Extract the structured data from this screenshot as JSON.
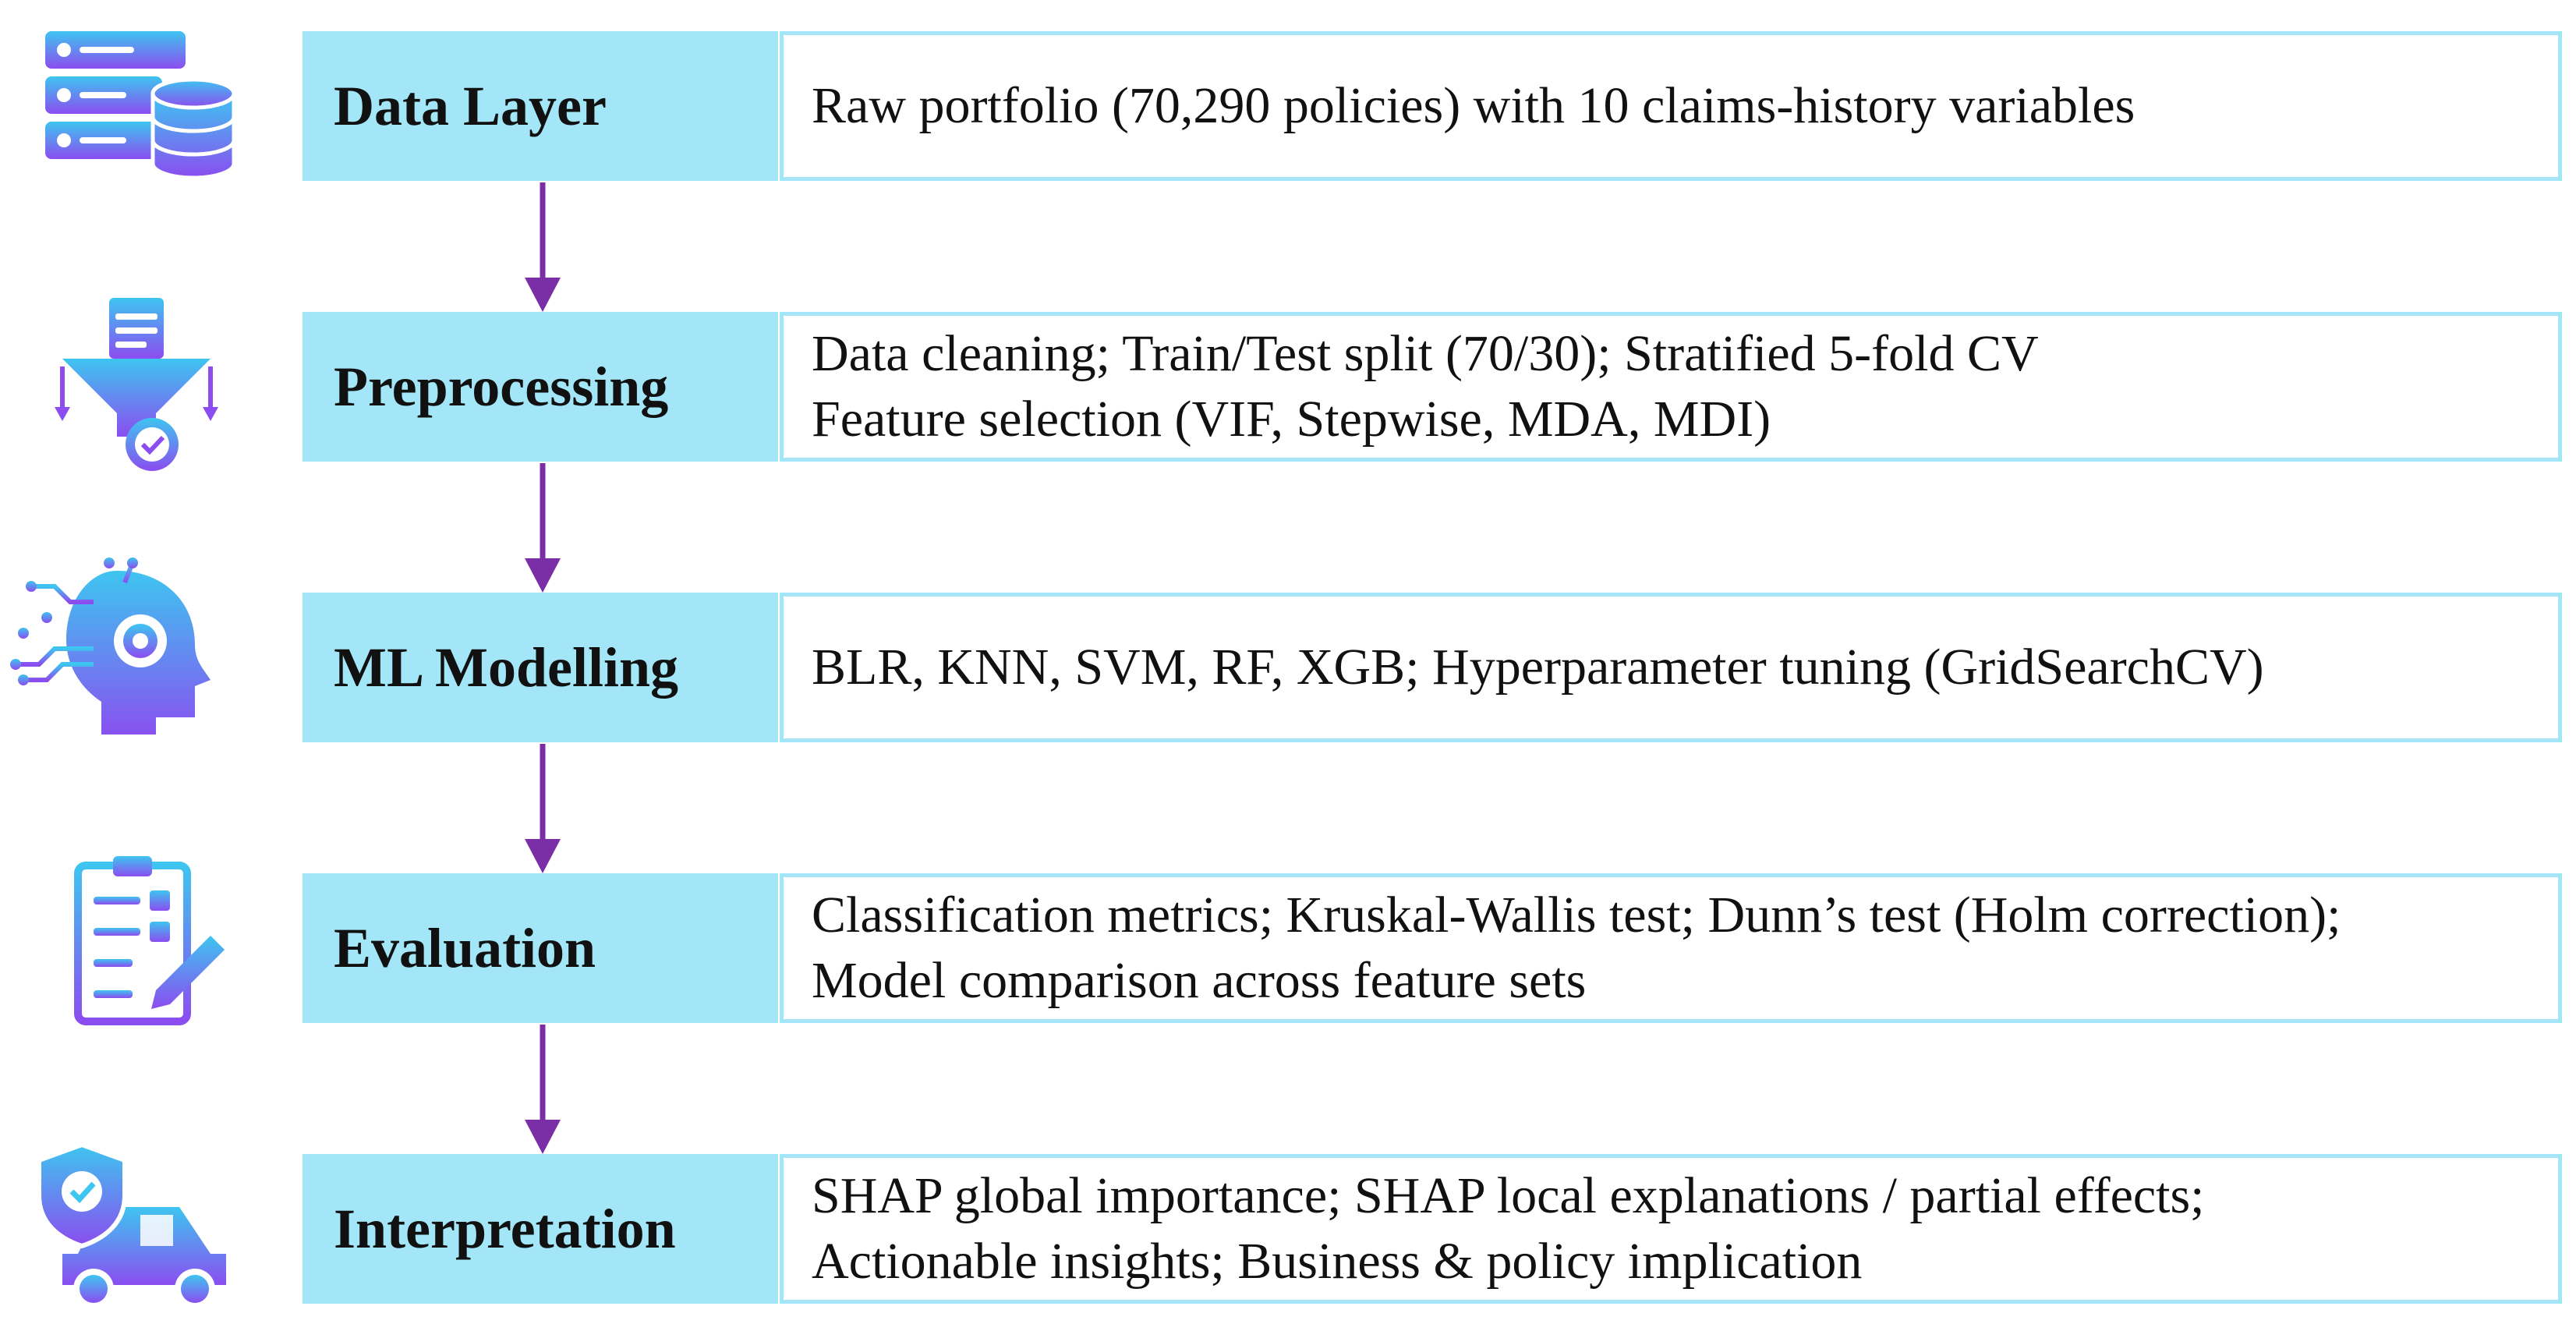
{
  "stages": [
    {
      "label": "Data Layer",
      "icon": "database-server-icon",
      "lines": [
        "Raw portfolio (70,290 policies) with 10 claims-history variables"
      ]
    },
    {
      "label": "Preprocessing",
      "icon": "funnel-gear-icon",
      "lines": [
        "Data cleaning; Train/Test split (70/30); Stratified 5-fold CV",
        "Feature selection (VIF, Stepwise, MDA, MDI)"
      ]
    },
    {
      "label": "ML Modelling",
      "icon": "ai-head-circuit-icon",
      "lines": [
        "BLR, KNN, SVM, RF, XGB; Hyperparameter tuning (GridSearchCV)"
      ]
    },
    {
      "label": "Evaluation",
      "icon": "clipboard-checklist-icon",
      "lines": [
        "Classification metrics; Kruskal-Wallis test; Dunn’s test (Holm correction);",
        "Model comparison across feature sets"
      ]
    },
    {
      "label": "Interpretation",
      "icon": "car-insurance-shield-icon",
      "lines": [
        "SHAP global importance; SHAP local explanations / partial effects;",
        "Actionable insights; Business & policy implication"
      ]
    }
  ],
  "colors": {
    "stage_fill": "#a3e6f7",
    "desc_border": "#a3e6f7",
    "arrow": "#7b2fa6",
    "icon_gradient_top": "#3ec5f0",
    "icon_gradient_bottom": "#8b4df0"
  }
}
